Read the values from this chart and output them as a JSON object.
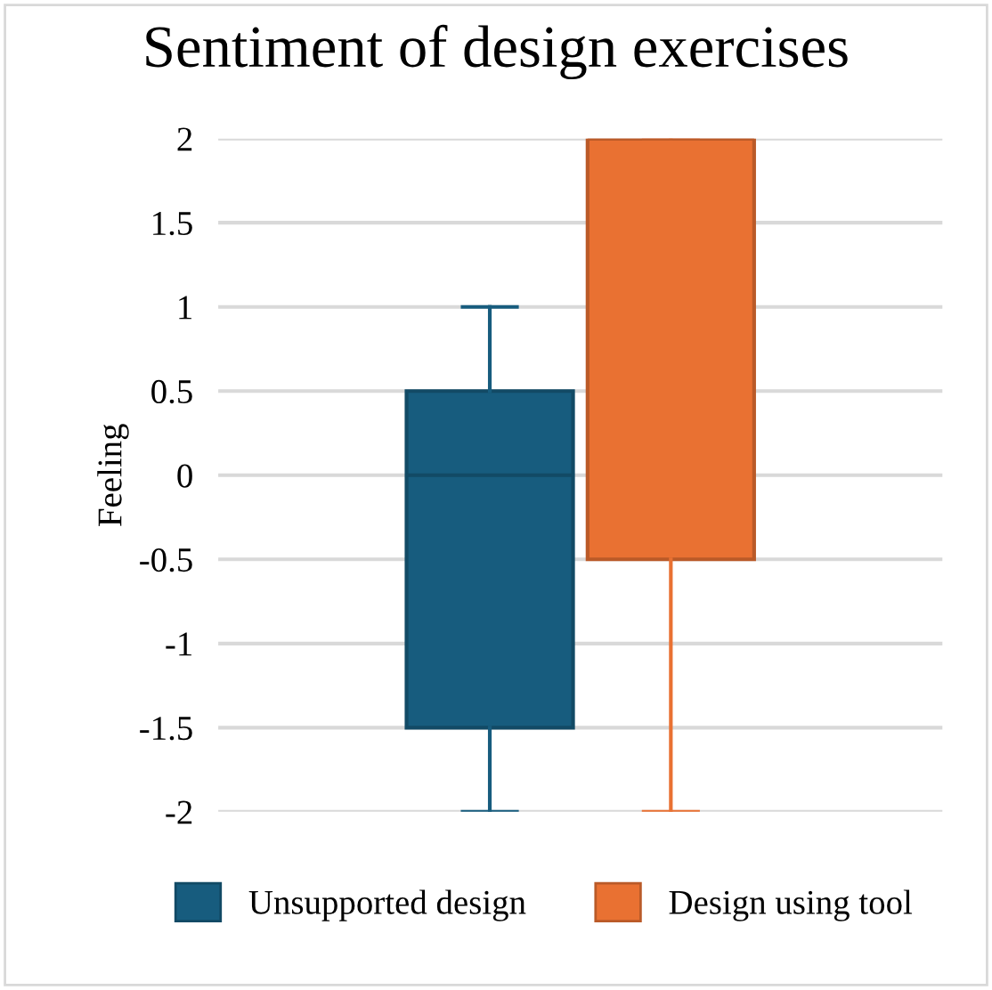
{
  "chart_data": {
    "type": "box",
    "title": "Sentiment of design exercises",
    "ylabel": "Feeling",
    "categories": [
      null
    ],
    "series": [
      {
        "name": "Unsupported design",
        "color": "#175c7e",
        "boxes": [
          {
            "low": -2,
            "q1": -1.5,
            "median": 0,
            "q3": 0.5,
            "high": 1
          }
        ]
      },
      {
        "name": "Design using tool",
        "color": "#e97132",
        "boxes": [
          {
            "low": -2,
            "q1": -0.5,
            "median": 2,
            "q3": 2,
            "high": 2
          }
        ]
      }
    ],
    "ylim": [
      -2,
      2
    ],
    "yticks": [
      2,
      1.5,
      1,
      0.5,
      0,
      -0.5,
      -1,
      -1.5,
      -2
    ],
    "grid": "y",
    "legend": "bottom"
  }
}
